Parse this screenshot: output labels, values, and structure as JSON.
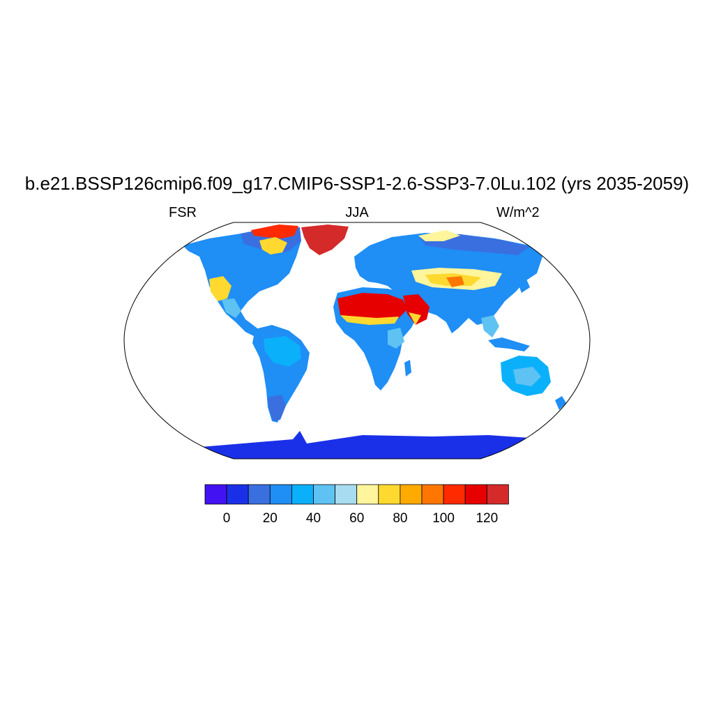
{
  "title": "b.e21.BSSP126cmip6.f09_g17.CMIP6-SSP1-2.6-SSP3-7.0Lu.102 (yrs 2035-2059)",
  "left_label": "FSR",
  "center_label": "JJA",
  "right_label": "W/m^2",
  "colorbar": {
    "colors": [
      "#4212f2",
      "#1a30e8",
      "#3a6fe0",
      "#1f8ef5",
      "#0bb0fa",
      "#5ec2f2",
      "#a8dcf0",
      "#fff59c",
      "#ffd92f",
      "#ffaa00",
      "#ff7700",
      "#ff2a00",
      "#e60000",
      "#d42a2a"
    ],
    "ticks": [
      "0",
      "20",
      "40",
      "60",
      "80",
      "100",
      "120"
    ]
  },
  "map": {
    "projection": "Robinson",
    "region_colors": {
      "ocean": "#ffffff",
      "land_default": "#1f8ef5",
      "high_lat": "#3a6fe0",
      "antarctica": "#1a30e8",
      "greenland": "#d42a2a",
      "sahara": "#e60000",
      "desert_edge": "#ffd92f",
      "asia_arid": "#fff59c"
    }
  }
}
